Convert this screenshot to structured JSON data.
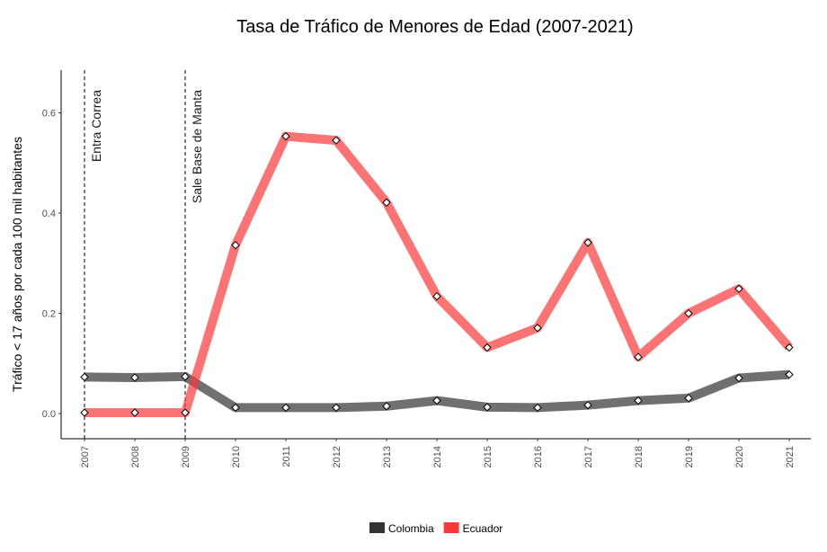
{
  "chart_data": {
    "type": "line",
    "title": "Tasa de Tráfico de Menores de Edad (2007-2021)",
    "xlabel": "",
    "ylabel": "Tráfico < 17 años por cada 100 mil habitantes",
    "x": [
      "2007",
      "2008",
      "2009",
      "2010",
      "2011",
      "2012",
      "2013",
      "2014",
      "2015",
      "2016",
      "2017",
      "2018",
      "2019",
      "2020",
      "2021"
    ],
    "ylim": [
      -0.05,
      0.685
    ],
    "yticks": [
      "0.0",
      "0.2",
      "0.4",
      "0.6"
    ],
    "grid": false,
    "legend_position": "bottom",
    "series": [
      {
        "name": "Colombia",
        "color": "#333333",
        "values": [
          0.073,
          0.072,
          0.074,
          0.012,
          0.012,
          0.012,
          0.015,
          0.026,
          0.013,
          0.012,
          0.017,
          0.026,
          0.031,
          0.071,
          0.078
        ]
      },
      {
        "name": "Ecuador",
        "color": "#F8393C",
        "values": [
          0.002,
          0.002,
          0.002,
          0.336,
          0.553,
          0.545,
          0.421,
          0.234,
          0.132,
          0.171,
          0.341,
          0.113,
          0.2,
          0.249,
          0.132
        ]
      }
    ],
    "annotations": [
      {
        "x": "2007",
        "label": "Entra Correa"
      },
      {
        "x": "2009",
        "label": "Sale Base de Manta"
      }
    ]
  }
}
